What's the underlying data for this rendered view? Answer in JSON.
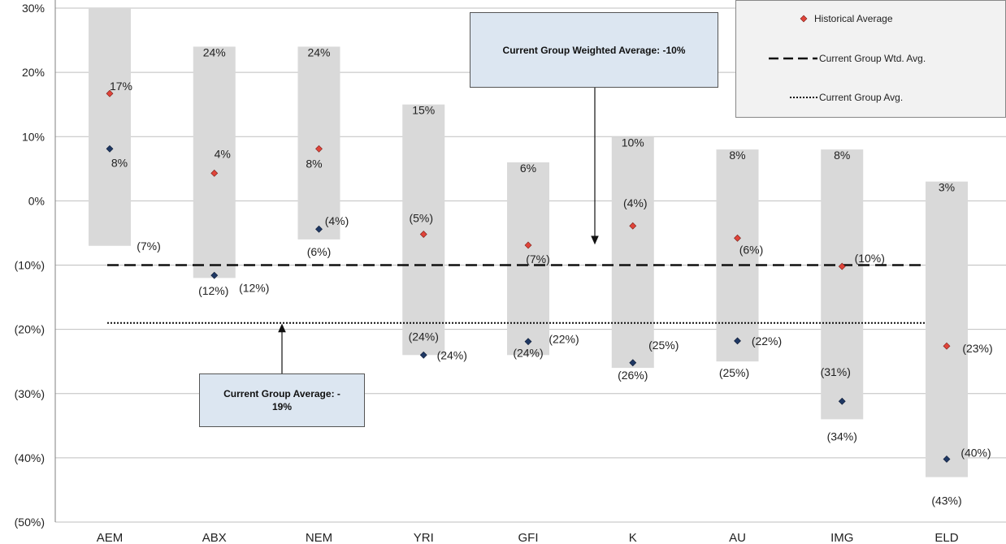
{
  "chart_data": {
    "type": "range-bar with markers",
    "categories": [
      "AEM",
      "ABX",
      "NEM",
      "YRI",
      "GFI",
      "K",
      "AU",
      "IMG",
      "ELD"
    ],
    "ylim": [
      -50,
      30
    ],
    "yticks": [
      30,
      20,
      10,
      0,
      -10,
      -20,
      -30,
      -40,
      -50
    ],
    "ytick_labels": [
      "30%",
      "20%",
      "10%",
      "0%",
      "(10%)",
      "(20%)",
      "(30%)",
      "(40%)",
      "(50%)"
    ],
    "range_high": [
      30,
      24,
      24,
      15,
      6,
      10,
      8,
      8,
      3
    ],
    "range_low": [
      -7,
      -12,
      -6,
      -24,
      -24,
      -26,
      -25,
      -34,
      -43
    ],
    "range_high_labels": [
      "",
      "24%",
      "24%",
      "15%",
      "6%",
      "10%",
      "8%",
      "8%",
      "3%"
    ],
    "range_low_labels": [
      "(7%)",
      "(12%)",
      "(6%)",
      "(24%)",
      "(24%)",
      "(26%)",
      "(25%)",
      "(34%)",
      "(43%)"
    ],
    "series": [
      {
        "name": "Historical Average",
        "color": "#e0443a",
        "values": [
          16.7,
          4.3,
          8.1,
          -5.2,
          -6.9,
          -3.9,
          -5.8,
          -10.2,
          -22.6
        ],
        "labels": [
          "17%",
          "4%",
          "8%",
          "(5%)",
          "(7%)",
          "(4%)",
          "(6%)",
          "(10%)",
          "(23%)"
        ]
      },
      {
        "name": "",
        "color": "#1f3864",
        "values": [
          8.1,
          -11.6,
          -4.4,
          -24.0,
          -21.9,
          -25.2,
          -21.8,
          -31.2,
          -40.2
        ],
        "labels": [
          "8%",
          "(12%)",
          "(4%)",
          "(24%)",
          "(22%)",
          "(25%)",
          "(22%)",
          "(31%)",
          "(40%)"
        ]
      }
    ],
    "reference_lines": [
      {
        "name": "Current Group Wtd. Avg.",
        "value": -10,
        "style": "dashed"
      },
      {
        "name": "Current Group Avg.",
        "value": -19,
        "style": "dotted"
      }
    ],
    "annotations": [
      {
        "id": "weighted",
        "text": "Current Group Weighted Average: -10%"
      },
      {
        "id": "average",
        "text": "Current Group Average: -19%"
      }
    ],
    "grid": true,
    "legend_position": "top-right"
  },
  "legend": {
    "items": [
      {
        "label": "Historical Average",
        "symbol": "diamond",
        "color": "#e0443a"
      },
      {
        "label": "Current Group Wtd. Avg.",
        "symbol": "dashed-line",
        "color": "#111111"
      },
      {
        "label": "Current Group Avg.",
        "symbol": "dotted-line",
        "color": "#111111"
      }
    ]
  },
  "callouts": {
    "weighted": "Current Group Weighted Average: -10%",
    "average_line1": "Current Group Average: -",
    "average_line2": "19%"
  }
}
